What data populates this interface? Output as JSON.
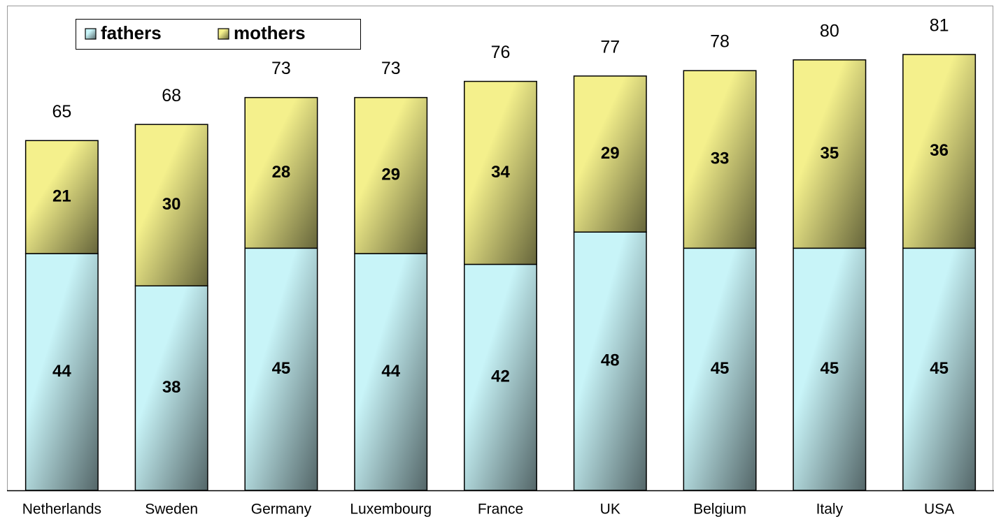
{
  "chart_data": {
    "type": "stacked_bar",
    "categories": [
      "Netherlands",
      "Sweden",
      "Germany",
      "Luxembourg",
      "France",
      "UK",
      "Belgium",
      "Italy",
      "USA"
    ],
    "series": [
      {
        "name": "fathers",
        "color": "#c8f4f8",
        "values": [
          44,
          38,
          45,
          44,
          42,
          48,
          45,
          45,
          45
        ]
      },
      {
        "name": "mothers",
        "color": "#f4f08c",
        "values": [
          21,
          30,
          28,
          29,
          34,
          29,
          33,
          35,
          36
        ]
      }
    ],
    "totals": [
      65,
      68,
      73,
      73,
      76,
      77,
      78,
      80,
      81
    ],
    "legend": "top-left",
    "grid": false
  }
}
